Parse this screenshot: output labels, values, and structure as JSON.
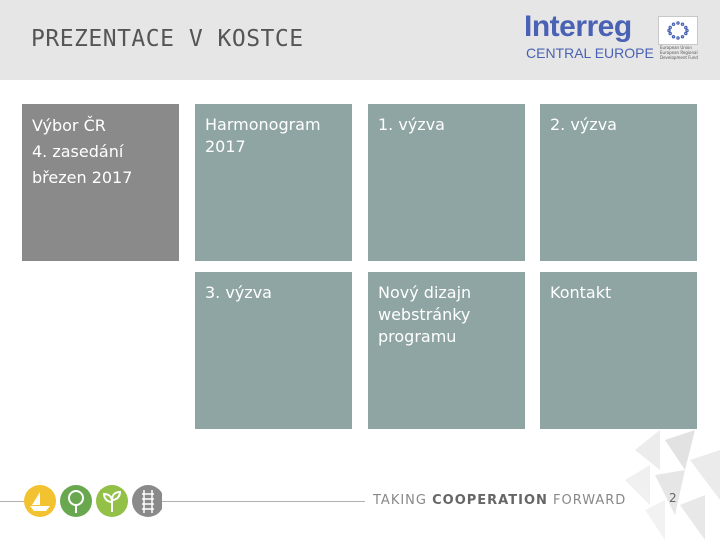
{
  "header": {
    "title": "PREZENTACE V KOSTCE"
  },
  "logo": {
    "word": "Interreg",
    "sub": "CENTRAL EUROPE",
    "eu_text": "European Union European Regional Development Fund"
  },
  "sidebar_tile": {
    "line1": "Výbor ČR",
    "line2": "4. zasedání",
    "line3": "březen 2017"
  },
  "tiles": [
    {
      "label": "Harmonogram 2017"
    },
    {
      "label": "1. výzva"
    },
    {
      "label": "2. výzva"
    },
    {
      "label": "3. výzva"
    },
    {
      "label": "Nový dizajn webstránky programu"
    },
    {
      "label": "Kontakt"
    }
  ],
  "footer": {
    "text_prefix": "TAKING ",
    "text_bold": "COOPERATION",
    "text_suffix": " FORWARD",
    "page_number": "2"
  },
  "colors": {
    "tile": "#8fa5a3",
    "sidebar_tile": "#8a8a8a",
    "header_bg": "#e6e6e6",
    "brand_blue": "#4a62b4"
  },
  "icons": [
    "boat-icon",
    "tree-icon",
    "sprout-icon",
    "railway-icon"
  ]
}
